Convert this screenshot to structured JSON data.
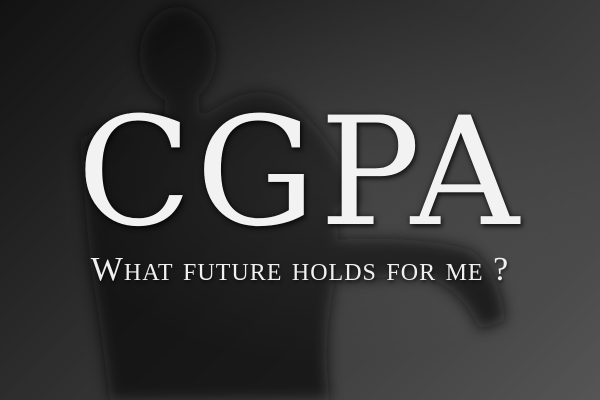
{
  "image": {
    "title": "CGPA",
    "subtitle": "What future holds for me ?",
    "colors": {
      "background_dark": "#121212",
      "background_light": "#555555",
      "text": "#f2f2f2",
      "silhouette": "#0c0c0c"
    }
  }
}
